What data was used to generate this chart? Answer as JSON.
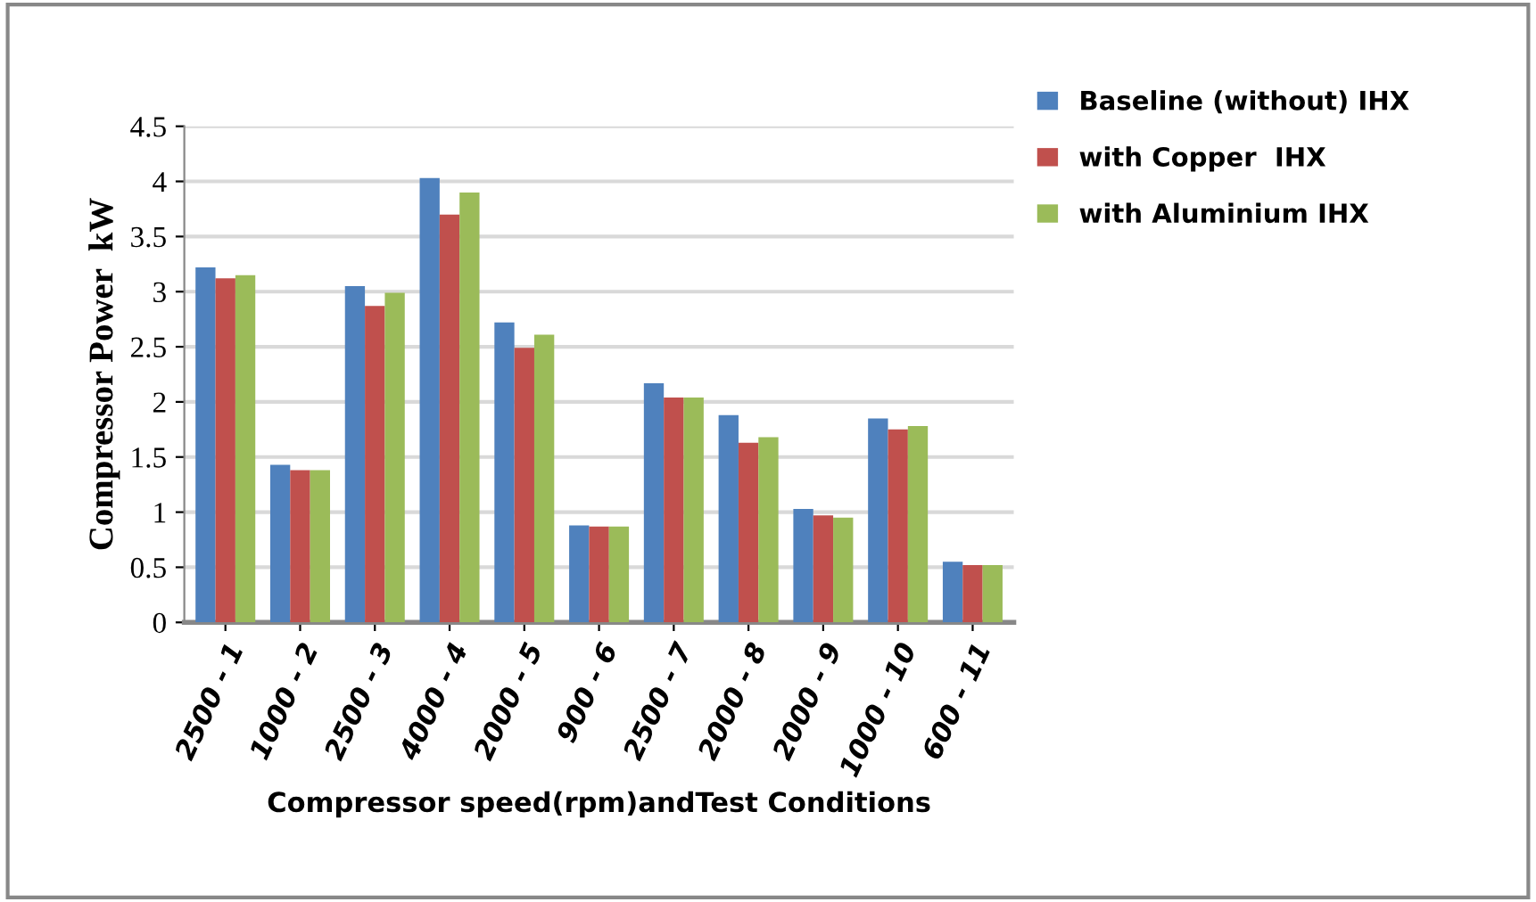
{
  "chart_data": {
    "type": "bar",
    "xlabel": "Compressor speed(rpm)andTest Conditions",
    "ylabel": "Compressor Power  kW",
    "categories": [
      "2500 - 1",
      "1000 - 2",
      "2500 - 3",
      "4000 - 4",
      "2000 - 5",
      "900 - 6",
      "2500 - 7",
      "2000 - 8",
      "2000 - 9",
      "1000 - 10",
      "600 - 11"
    ],
    "series": [
      {
        "name": "Baseline (without) IHX",
        "color": "#4f81bd",
        "values": [
          3.22,
          1.43,
          3.05,
          4.03,
          2.72,
          0.88,
          2.17,
          1.88,
          1.03,
          1.85,
          0.55
        ]
      },
      {
        "name": "with Copper  IHX",
        "color": "#c0504d",
        "values": [
          3.12,
          1.38,
          2.87,
          3.7,
          2.49,
          0.87,
          2.04,
          1.63,
          0.97,
          1.75,
          0.52
        ]
      },
      {
        "name": "with Aluminium IHX",
        "color": "#9bbb59",
        "values": [
          3.15,
          1.38,
          2.99,
          3.9,
          2.61,
          0.87,
          2.04,
          1.68,
          0.95,
          1.78,
          0.52
        ]
      }
    ],
    "ylim": [
      0,
      4.5
    ],
    "yticks": [
      0,
      0.5,
      1,
      1.5,
      2,
      2.5,
      3,
      3.5,
      4,
      4.5
    ],
    "grid": "y",
    "legend": "top right"
  }
}
